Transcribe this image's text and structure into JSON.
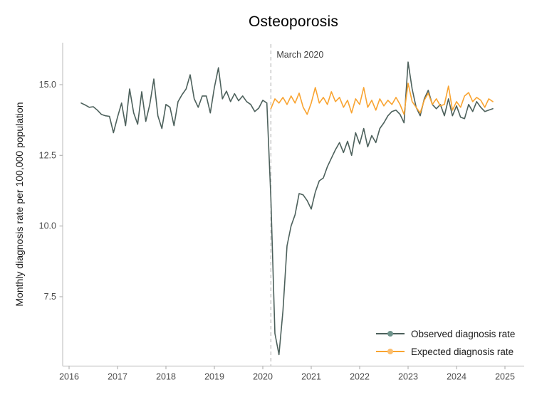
{
  "title": "Osteoporosis",
  "y_axis_title": "Monthly diagnosis rate per 100,000 population",
  "annotation": {
    "text": "March 2020"
  },
  "legend": {
    "observed_label": "Observed diagnosis rate",
    "expected_label": "Expected diagnosis rate"
  },
  "colors": {
    "observed_line": "#4d615c",
    "observed_marker": "#6f948c",
    "expected_line": "#f9a431",
    "expected_marker": "#fcbe6e",
    "axis_line": "#c6c6c6",
    "tick_mark": "#b5b5b5",
    "tick_label": "#4d4d4d",
    "dashed_line": "#b9b9b9",
    "annotation_text": "#3d3d3d"
  },
  "chart_data": {
    "type": "line",
    "title": "Osteoporosis",
    "xlabel": "",
    "ylabel": "Monthly diagnosis rate per 100,000 population",
    "x_ticks": [
      2016,
      2017,
      2018,
      2019,
      2020,
      2021,
      2022,
      2023,
      2024,
      2025
    ],
    "y_ticks": [
      7.5,
      10.0,
      12.5,
      15.0
    ],
    "xlim": [
      2015.85,
      2025.4
    ],
    "ylim": [
      5.0,
      16.45
    ],
    "grid": false,
    "legend_position": "bottom-right",
    "annotation": {
      "text": "March 2020",
      "x": 2020.1667
    },
    "series": [
      {
        "name": "Observed diagnosis rate",
        "color": "#4d615c",
        "marker_color": "#6f948c",
        "start_year": 2016,
        "start_month": 4,
        "frequency": "monthly",
        "values": [
          14.35,
          14.28,
          14.2,
          14.22,
          14.1,
          13.95,
          13.9,
          13.88,
          13.3,
          13.85,
          14.35,
          13.55,
          14.85,
          14.0,
          13.6,
          14.75,
          13.7,
          14.3,
          15.2,
          13.9,
          13.45,
          14.3,
          14.2,
          13.55,
          14.4,
          14.65,
          14.85,
          15.35,
          14.5,
          14.2,
          14.6,
          14.6,
          14.0,
          14.9,
          15.6,
          14.5,
          14.77,
          14.4,
          14.68,
          14.43,
          14.6,
          14.4,
          14.3,
          14.05,
          14.17,
          14.45,
          14.35,
          11.0,
          6.2,
          5.45,
          7.0,
          9.3,
          10.0,
          10.4,
          11.15,
          11.1,
          10.9,
          10.6,
          11.2,
          11.6,
          11.7,
          12.1,
          12.4,
          12.7,
          12.95,
          12.6,
          13.0,
          12.5,
          13.3,
          12.9,
          13.45,
          12.8,
          13.2,
          12.95,
          13.45,
          13.65,
          13.9,
          14.05,
          14.1,
          13.95,
          13.65,
          15.8,
          14.85,
          14.2,
          13.9,
          14.5,
          14.8,
          14.3,
          14.15,
          14.3,
          13.9,
          14.5,
          13.9,
          14.25,
          13.85,
          13.8,
          14.3,
          14.05,
          14.4,
          14.2,
          14.05,
          14.1,
          14.15
        ]
      },
      {
        "name": "Expected diagnosis rate",
        "color": "#f9a431",
        "marker_color": "#fcbe6e",
        "start_year": 2020,
        "start_month": 3,
        "frequency": "monthly",
        "values": [
          14.15,
          14.5,
          14.35,
          14.55,
          14.3,
          14.6,
          14.35,
          14.7,
          14.2,
          13.95,
          14.35,
          14.9,
          14.35,
          14.55,
          14.3,
          14.75,
          14.4,
          14.55,
          14.2,
          14.45,
          14.0,
          14.5,
          14.3,
          14.9,
          14.2,
          14.45,
          14.1,
          14.5,
          14.25,
          14.45,
          14.3,
          14.55,
          14.3,
          13.95,
          15.05,
          14.4,
          14.2,
          14.0,
          14.45,
          14.7,
          14.3,
          14.5,
          14.25,
          14.3,
          14.95,
          14.1,
          14.4,
          14.2,
          14.6,
          14.72,
          14.4,
          14.55,
          14.45,
          14.2,
          14.5,
          14.4
        ]
      }
    ]
  }
}
